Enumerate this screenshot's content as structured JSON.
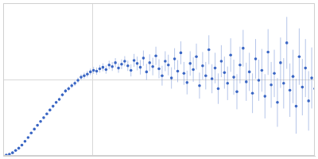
{
  "chart_data": {
    "type": "scatter",
    "x": [
      0.0035,
      0.007,
      0.0105,
      0.014,
      0.0175,
      0.021,
      0.0245,
      0.028,
      0.0315,
      0.035,
      0.0385,
      0.042,
      0.0455,
      0.049,
      0.0525,
      0.056,
      0.0595,
      0.063,
      0.0665,
      0.07,
      0.0735,
      0.077,
      0.0805,
      0.084,
      0.0875,
      0.091,
      0.0945,
      0.098,
      0.1015,
      0.105,
      0.1085,
      0.112,
      0.1155,
      0.119,
      0.1225,
      0.126,
      0.1295,
      0.133,
      0.1365,
      0.14,
      0.1435,
      0.147,
      0.1505,
      0.154,
      0.1575,
      0.161,
      0.1645,
      0.168,
      0.1715,
      0.175,
      0.1785,
      0.182,
      0.1855,
      0.189,
      0.1925,
      0.196,
      0.1995,
      0.203,
      0.2065,
      0.21,
      0.2135,
      0.217,
      0.2205,
      0.224,
      0.2275,
      0.231,
      0.2345,
      0.238,
      0.2415,
      0.245,
      0.2485,
      0.252,
      0.2555,
      0.259,
      0.2625,
      0.266,
      0.2695,
      0.273,
      0.2765,
      0.28,
      0.2835,
      0.287,
      0.2905,
      0.294,
      0.2975,
      0.301,
      0.3045,
      0.308,
      0.3115,
      0.315,
      0.3185,
      0.322,
      0.3255,
      0.329,
      0.3325,
      0.336,
      0.3395,
      0.343,
      0.3465,
      0.35
    ],
    "values": [
      0.01,
      0.02,
      0.04,
      0.07,
      0.1,
      0.14,
      0.19,
      0.24,
      0.3,
      0.35,
      0.4,
      0.45,
      0.5,
      0.55,
      0.6,
      0.65,
      0.7,
      0.74,
      0.8,
      0.85,
      0.88,
      0.92,
      0.95,
      0.99,
      1.03,
      1.05,
      1.07,
      1.1,
      1.12,
      1.11,
      1.14,
      1.16,
      1.13,
      1.19,
      1.17,
      1.22,
      1.15,
      1.2,
      1.24,
      1.18,
      1.12,
      1.25,
      1.21,
      1.16,
      1.28,
      1.1,
      1.22,
      1.17,
      1.31,
      1.14,
      1.05,
      1.24,
      1.19,
      1.02,
      1.27,
      1.11,
      1.35,
      1.08,
      0.96,
      1.21,
      1.13,
      1.3,
      0.92,
      1.18,
      1.05,
      1.39,
      1.01,
      1.15,
      0.88,
      1.24,
      1.09,
      0.95,
      1.32,
      1.03,
      0.84,
      1.19,
      1.41,
      0.97,
      1.1,
      0.82,
      1.27,
      0.99,
      1.12,
      0.78,
      1.36,
      0.93,
      1.08,
      0.7,
      1.22,
      0.95,
      1.48,
      0.86,
      1.04,
      0.65,
      1.3,
      0.9,
      1.15,
      0.72,
      1.02,
      0.88
    ],
    "errors": [
      0.005,
      0.005,
      0.006,
      0.007,
      0.008,
      0.009,
      0.01,
      0.01,
      0.012,
      0.012,
      0.014,
      0.015,
      0.016,
      0.017,
      0.018,
      0.019,
      0.02,
      0.022,
      0.024,
      0.025,
      0.03,
      0.032,
      0.034,
      0.036,
      0.038,
      0.04,
      0.042,
      0.044,
      0.046,
      0.048,
      0.05,
      0.052,
      0.054,
      0.056,
      0.058,
      0.06,
      0.062,
      0.064,
      0.066,
      0.068,
      0.08,
      0.085,
      0.09,
      0.095,
      0.1,
      0.105,
      0.11,
      0.115,
      0.12,
      0.125,
      0.13,
      0.13,
      0.135,
      0.14,
      0.14,
      0.145,
      0.15,
      0.15,
      0.155,
      0.16,
      0.16,
      0.17,
      0.17,
      0.18,
      0.18,
      0.19,
      0.19,
      0.2,
      0.2,
      0.21,
      0.21,
      0.22,
      0.22,
      0.23,
      0.23,
      0.24,
      0.24,
      0.25,
      0.25,
      0.26,
      0.26,
      0.27,
      0.28,
      0.29,
      0.3,
      0.3,
      0.31,
      0.32,
      0.33,
      0.33,
      0.34,
      0.35,
      0.35,
      0.36,
      0.37,
      0.37,
      0.38,
      0.39,
      0.4,
      0.4
    ],
    "color": "#3a66c4",
    "marker": "circle",
    "xlim": [
      0,
      0.35
    ],
    "xticks": [
      0.1
    ],
    "ylim": [
      0,
      2
    ],
    "yticks": [
      1
    ],
    "grid": true,
    "tick_labels": false
  }
}
